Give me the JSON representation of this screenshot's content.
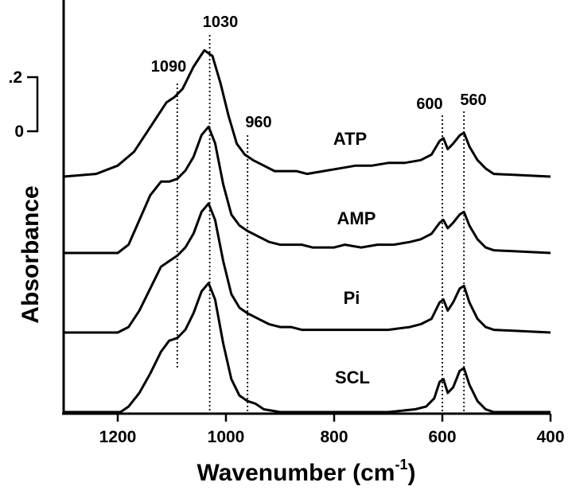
{
  "chart_data": {
    "type": "line",
    "xlabel": "Wavenumber (cm",
    "xlabel_superscript": "-1",
    "xlabel_suffix": ")",
    "ylabel": "Absorbance",
    "xlim": [
      1300,
      400
    ],
    "x_reversed": true,
    "x_ticks": [
      {
        "value": 1200,
        "label": "1200"
      },
      {
        "value": 1000,
        "label": "1000"
      },
      {
        "value": 800,
        "label": "800"
      },
      {
        "value": 600,
        "label": "600"
      },
      {
        "value": 400,
        "label": "400"
      }
    ],
    "scale_bar": {
      "top_label": ".2",
      "bottom_label": "0",
      "value": 0.2
    },
    "grid": false,
    "legend": "none",
    "series_offset_note": "spectra stacked vertically; values are relative absorbance",
    "series": [
      {
        "name": "ATP",
        "points": [
          [
            1300,
            0.0
          ],
          [
            1240,
            0.01
          ],
          [
            1200,
            0.04
          ],
          [
            1170,
            0.09
          ],
          [
            1140,
            0.18
          ],
          [
            1110,
            0.27
          ],
          [
            1095,
            0.29
          ],
          [
            1080,
            0.32
          ],
          [
            1060,
            0.4
          ],
          [
            1040,
            0.46
          ],
          [
            1025,
            0.44
          ],
          [
            1010,
            0.34
          ],
          [
            995,
            0.22
          ],
          [
            980,
            0.12
          ],
          [
            965,
            0.08
          ],
          [
            950,
            0.06
          ],
          [
            930,
            0.04
          ],
          [
            910,
            0.02
          ],
          [
            890,
            0.02
          ],
          [
            870,
            0.02
          ],
          [
            850,
            0.01
          ],
          [
            820,
            0.02
          ],
          [
            790,
            0.03
          ],
          [
            760,
            0.04
          ],
          [
            730,
            0.04
          ],
          [
            700,
            0.05
          ],
          [
            670,
            0.05
          ],
          [
            640,
            0.06
          ],
          [
            620,
            0.08
          ],
          [
            605,
            0.13
          ],
          [
            598,
            0.14
          ],
          [
            590,
            0.1
          ],
          [
            580,
            0.12
          ],
          [
            568,
            0.15
          ],
          [
            560,
            0.16
          ],
          [
            550,
            0.11
          ],
          [
            535,
            0.06
          ],
          [
            520,
            0.03
          ],
          [
            505,
            0.01
          ],
          [
            400,
            0.0
          ]
        ]
      },
      {
        "name": "AMP",
        "points": [
          [
            1300,
            0.0
          ],
          [
            1200,
            0.0
          ],
          [
            1180,
            0.03
          ],
          [
            1160,
            0.12
          ],
          [
            1140,
            0.21
          ],
          [
            1120,
            0.26
          ],
          [
            1105,
            0.26
          ],
          [
            1090,
            0.27
          ],
          [
            1075,
            0.3
          ],
          [
            1060,
            0.35
          ],
          [
            1045,
            0.43
          ],
          [
            1032,
            0.46
          ],
          [
            1020,
            0.4
          ],
          [
            1005,
            0.25
          ],
          [
            990,
            0.14
          ],
          [
            975,
            0.1
          ],
          [
            960,
            0.08
          ],
          [
            940,
            0.06
          ],
          [
            920,
            0.04
          ],
          [
            900,
            0.03
          ],
          [
            880,
            0.03
          ],
          [
            860,
            0.03
          ],
          [
            840,
            0.02
          ],
          [
            820,
            0.02
          ],
          [
            800,
            0.02
          ],
          [
            780,
            0.03
          ],
          [
            750,
            0.02
          ],
          [
            720,
            0.03
          ],
          [
            690,
            0.03
          ],
          [
            660,
            0.04
          ],
          [
            640,
            0.05
          ],
          [
            620,
            0.07
          ],
          [
            605,
            0.11
          ],
          [
            598,
            0.12
          ],
          [
            590,
            0.09
          ],
          [
            580,
            0.11
          ],
          [
            568,
            0.14
          ],
          [
            560,
            0.15
          ],
          [
            550,
            0.1
          ],
          [
            535,
            0.05
          ],
          [
            520,
            0.02
          ],
          [
            505,
            0.01
          ],
          [
            400,
            0.0
          ]
        ]
      },
      {
        "name": "Pi",
        "points": [
          [
            1300,
            0.0
          ],
          [
            1200,
            0.0
          ],
          [
            1180,
            0.02
          ],
          [
            1160,
            0.08
          ],
          [
            1140,
            0.16
          ],
          [
            1120,
            0.24
          ],
          [
            1105,
            0.26
          ],
          [
            1090,
            0.28
          ],
          [
            1075,
            0.31
          ],
          [
            1060,
            0.36
          ],
          [
            1045,
            0.44
          ],
          [
            1032,
            0.47
          ],
          [
            1020,
            0.41
          ],
          [
            1005,
            0.26
          ],
          [
            990,
            0.14
          ],
          [
            975,
            0.09
          ],
          [
            960,
            0.07
          ],
          [
            940,
            0.05
          ],
          [
            920,
            0.03
          ],
          [
            900,
            0.02
          ],
          [
            880,
            0.02
          ],
          [
            860,
            0.01
          ],
          [
            820,
            0.01
          ],
          [
            780,
            0.01
          ],
          [
            740,
            0.01
          ],
          [
            700,
            0.01
          ],
          [
            660,
            0.02
          ],
          [
            640,
            0.03
          ],
          [
            620,
            0.05
          ],
          [
            605,
            0.11
          ],
          [
            598,
            0.12
          ],
          [
            590,
            0.08
          ],
          [
            580,
            0.11
          ],
          [
            568,
            0.16
          ],
          [
            560,
            0.17
          ],
          [
            550,
            0.11
          ],
          [
            535,
            0.05
          ],
          [
            520,
            0.02
          ],
          [
            505,
            0.01
          ],
          [
            400,
            0.0
          ]
        ]
      },
      {
        "name": "SCL",
        "points": [
          [
            1300,
            0.0
          ],
          [
            1195,
            0.0
          ],
          [
            1180,
            0.02
          ],
          [
            1160,
            0.07
          ],
          [
            1140,
            0.14
          ],
          [
            1120,
            0.22
          ],
          [
            1105,
            0.26
          ],
          [
            1090,
            0.27
          ],
          [
            1075,
            0.3
          ],
          [
            1060,
            0.36
          ],
          [
            1045,
            0.44
          ],
          [
            1032,
            0.47
          ],
          [
            1020,
            0.41
          ],
          [
            1005,
            0.25
          ],
          [
            990,
            0.12
          ],
          [
            975,
            0.06
          ],
          [
            960,
            0.04
          ],
          [
            945,
            0.03
          ],
          [
            930,
            0.01
          ],
          [
            900,
            0.0
          ],
          [
            800,
            0.0
          ],
          [
            700,
            0.0
          ],
          [
            650,
            0.01
          ],
          [
            630,
            0.02
          ],
          [
            615,
            0.05
          ],
          [
            605,
            0.11
          ],
          [
            598,
            0.12
          ],
          [
            590,
            0.07
          ],
          [
            580,
            0.09
          ],
          [
            568,
            0.15
          ],
          [
            560,
            0.16
          ],
          [
            550,
            0.1
          ],
          [
            535,
            0.04
          ],
          [
            520,
            0.01
          ],
          [
            505,
            0.0
          ],
          [
            400,
            0.0
          ]
        ]
      }
    ],
    "peak_markers": [
      {
        "x": 1090,
        "label": "1090"
      },
      {
        "x": 1030,
        "label": "1030"
      },
      {
        "x": 960,
        "label": "960"
      },
      {
        "x": 600,
        "label": "600"
      },
      {
        "x": 560,
        "label": "560"
      }
    ]
  }
}
